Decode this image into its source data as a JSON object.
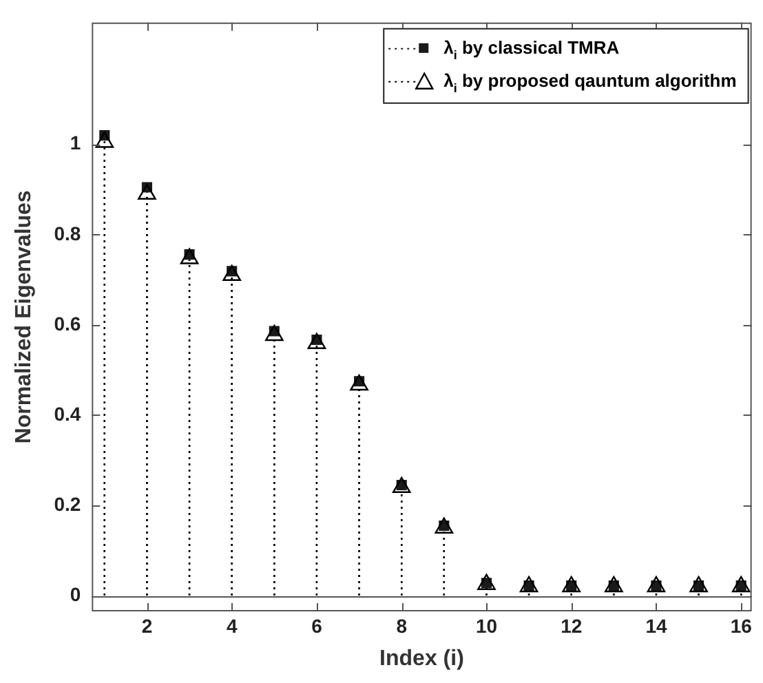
{
  "chart_data": {
    "type": "lollipop",
    "xlabel": "Index (i)",
    "ylabel": "Normalized Eigenvalues",
    "x": [
      1,
      2,
      3,
      4,
      5,
      6,
      7,
      8,
      9,
      10,
      11,
      12,
      13,
      14,
      15,
      16
    ],
    "series": [
      {
        "name": "λ$_{i}$ by classical TMRA",
        "color": "#1a1a1a",
        "marker": "square",
        "values": [
          1.02,
          0.905,
          0.756,
          0.719,
          0.586,
          0.567,
          0.475,
          0.245,
          0.155,
          0.028,
          0.022,
          0.022,
          0.022,
          0.022,
          0.022,
          0.022
        ]
      },
      {
        "name": "λ$_{i}$ by proposed qauntum algorithm",
        "color": "#000000",
        "marker": "triangle",
        "values": [
          1.005,
          0.89,
          0.747,
          0.71,
          0.577,
          0.559,
          0.467,
          0.24,
          0.15,
          0.025,
          0.02,
          0.02,
          0.02,
          0.02,
          0.02,
          0.02
        ]
      }
    ],
    "xlim": [
      0.7,
      16.25
    ],
    "xticks": [
      2,
      4,
      6,
      8,
      10,
      12,
      14,
      16
    ],
    "ylim": [
      -0.035,
      1.27
    ],
    "yticks": [
      0,
      0.2,
      0.4,
      0.6,
      0.8,
      1
    ],
    "ref_lines": [
      {
        "axis": "y",
        "value": 0,
        "color": "#555555",
        "line_style": "solid"
      }
    ],
    "grid": false,
    "legend": "top right",
    "line_style": "dotted"
  }
}
